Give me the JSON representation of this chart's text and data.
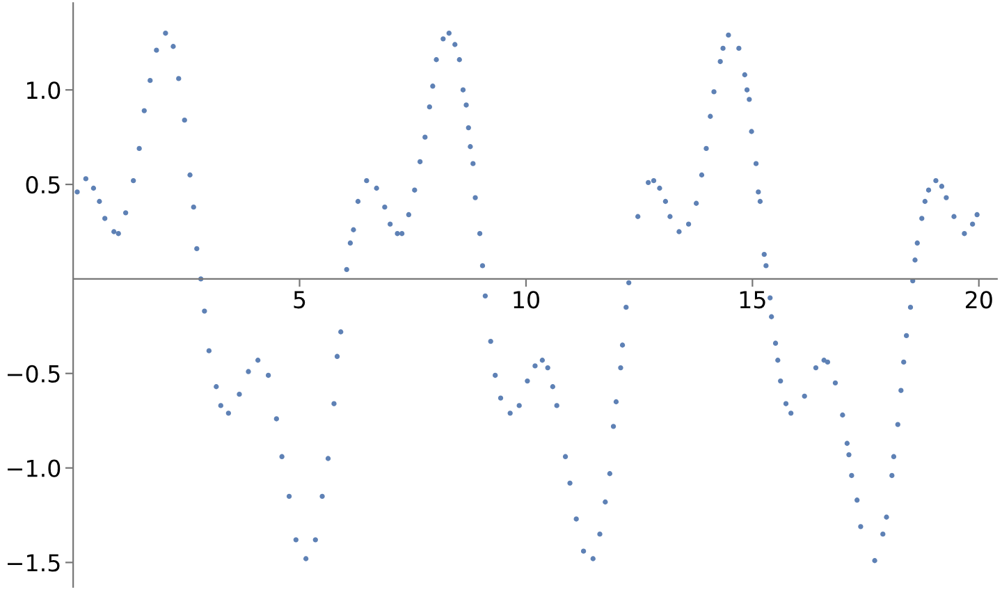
{
  "chart_data": {
    "type": "scatter",
    "marker": "circle",
    "grid": false,
    "xlim": [
      0,
      20.4
    ],
    "ylim": [
      -1.63,
      1.46
    ],
    "xticks": [
      5,
      10,
      15,
      20
    ],
    "yticks": [
      {
        "value": -1.5,
        "label": "−1.5"
      },
      {
        "value": -1.0,
        "label": "−1.0"
      },
      {
        "value": -0.5,
        "label": "−0.5"
      },
      0.5,
      {
        "value": 1.0,
        "label": "1.0"
      }
    ],
    "series": [
      {
        "color": "#5e81b5",
        "x": [
          0.09,
          0.28,
          0.45,
          0.58,
          0.7,
          0.9,
          1.0,
          1.16,
          1.33,
          1.46,
          1.57,
          1.7,
          1.84,
          2.04,
          2.21,
          2.33,
          2.46,
          2.58,
          2.66,
          2.73,
          2.82,
          2.9,
          3.0,
          3.16,
          3.26,
          3.43,
          3.67,
          3.87,
          4.08,
          4.31,
          4.49,
          4.61,
          4.77,
          4.92,
          5.14,
          5.35,
          5.5,
          5.63,
          5.76,
          5.83,
          5.91,
          6.04,
          6.12,
          6.19,
          6.29,
          6.48,
          6.7,
          6.88,
          7.0,
          7.16,
          7.26,
          7.41,
          7.54,
          7.66,
          7.77,
          7.87,
          7.94,
          8.02,
          8.17,
          8.3,
          8.43,
          8.53,
          8.61,
          8.68,
          8.73,
          8.77,
          8.83,
          8.88,
          8.98,
          9.04,
          9.1,
          9.22,
          9.32,
          9.44,
          9.65,
          9.85,
          10.03,
          10.2,
          10.36,
          10.48,
          10.59,
          10.68,
          10.87,
          10.97,
          11.11,
          11.27,
          11.48,
          11.63,
          11.75,
          11.85,
          11.93,
          11.99,
          12.09,
          12.13,
          12.21,
          12.27,
          12.47,
          12.7,
          12.82,
          12.95,
          13.08,
          13.18,
          13.38,
          13.59,
          13.76,
          13.88,
          13.98,
          14.07,
          14.15,
          14.29,
          14.35,
          14.47,
          14.7,
          14.83,
          14.88,
          14.93,
          14.98,
          15.08,
          15.13,
          15.17,
          15.26,
          15.3,
          15.39,
          15.42,
          15.51,
          15.56,
          15.62,
          15.74,
          15.85,
          16.15,
          16.4,
          16.58,
          16.66,
          16.83,
          16.99,
          17.09,
          17.13,
          17.19,
          17.31,
          17.39,
          17.7,
          17.88,
          17.96,
          18.08,
          18.12,
          18.21,
          18.28,
          18.34,
          18.4,
          18.49,
          18.54,
          18.59,
          18.64,
          18.74,
          18.81,
          18.89,
          19.05,
          19.18,
          19.28,
          19.45,
          19.68,
          19.86,
          19.96
        ],
        "values": [
          0.46,
          0.53,
          0.48,
          0.41,
          0.32,
          0.25,
          0.24,
          0.35,
          0.52,
          0.69,
          0.89,
          1.05,
          1.21,
          1.3,
          1.23,
          1.06,
          0.84,
          0.55,
          0.38,
          0.16,
          0.0,
          -0.17,
          -0.38,
          -0.57,
          -0.67,
          -0.71,
          -0.61,
          -0.49,
          -0.43,
          -0.51,
          -0.74,
          -0.94,
          -1.15,
          -1.38,
          -1.48,
          -1.38,
          -1.15,
          -0.95,
          -0.66,
          -0.41,
          -0.28,
          0.05,
          0.19,
          0.26,
          0.41,
          0.52,
          0.48,
          0.38,
          0.29,
          0.24,
          0.24,
          0.34,
          0.47,
          0.62,
          0.75,
          0.91,
          1.02,
          1.16,
          1.27,
          1.3,
          1.24,
          1.16,
          1.0,
          0.92,
          0.8,
          0.7,
          0.61,
          0.43,
          0.24,
          0.07,
          -0.09,
          -0.33,
          -0.51,
          -0.63,
          -0.71,
          -0.67,
          -0.54,
          -0.46,
          -0.43,
          -0.47,
          -0.57,
          -0.67,
          -0.94,
          -1.08,
          -1.27,
          -1.44,
          -1.48,
          -1.35,
          -1.18,
          -1.03,
          -0.78,
          -0.65,
          -0.47,
          -0.35,
          -0.15,
          -0.02,
          0.33,
          0.51,
          0.52,
          0.48,
          0.41,
          0.33,
          0.25,
          0.29,
          0.4,
          0.55,
          0.69,
          0.86,
          0.99,
          1.15,
          1.22,
          1.29,
          1.22,
          1.08,
          1.0,
          0.95,
          0.78,
          0.61,
          0.46,
          0.41,
          0.13,
          0.07,
          -0.1,
          -0.2,
          -0.34,
          -0.43,
          -0.54,
          -0.66,
          -0.71,
          -0.62,
          -0.47,
          -0.43,
          -0.44,
          -0.55,
          -0.72,
          -0.87,
          -0.93,
          -1.04,
          -1.17,
          -1.31,
          -1.49,
          -1.35,
          -1.26,
          -1.04,
          -0.94,
          -0.77,
          -0.59,
          -0.44,
          -0.3,
          -0.15,
          -0.01,
          0.1,
          0.19,
          0.32,
          0.41,
          0.47,
          0.52,
          0.49,
          0.43,
          0.33,
          0.24,
          0.29,
          0.34
        ]
      }
    ]
  }
}
